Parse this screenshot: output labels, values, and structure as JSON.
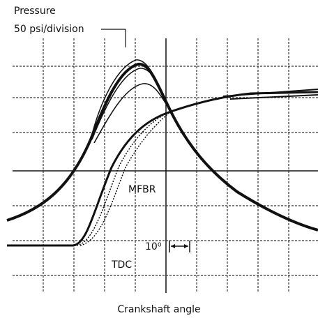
{
  "labels": {
    "pressure": "Pressure",
    "scale": "50 psi/division",
    "mfbr": "MFBR",
    "tdc": "TDC",
    "angle_scale": "10⁰",
    "x_axis": "Crankshaft angle"
  }
}
